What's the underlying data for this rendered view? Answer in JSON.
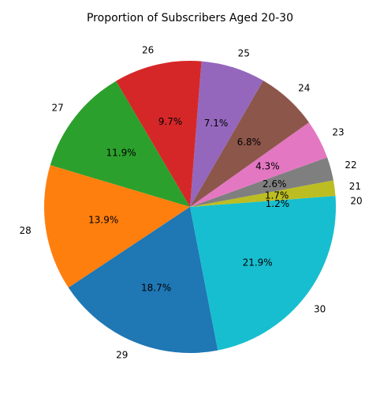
{
  "chart_data": {
    "type": "pie",
    "title": "Proportion of Subscribers Aged 20-30",
    "start_angle_deg": 0,
    "direction": "counterclockwise",
    "categories": [
      "20",
      "21",
      "22",
      "23",
      "24",
      "25",
      "26",
      "27",
      "28",
      "29",
      "30"
    ],
    "values": [
      1.2,
      1.7,
      2.6,
      4.3,
      6.8,
      7.1,
      9.7,
      11.9,
      13.9,
      18.7,
      21.9
    ],
    "percent_labels": [
      "1.2%",
      "1.7%",
      "2.6%",
      "4.3%",
      "6.8%",
      "7.1%",
      "9.7%",
      "11.9%",
      "13.9%",
      "18.7%",
      "21.9%"
    ],
    "colors": [
      "#17becf",
      "#bcbd22",
      "#7f7f7f",
      "#e377c2",
      "#8c564b",
      "#9467bd",
      "#d62728",
      "#2ca02c",
      "#ff7f0e",
      "#1f77b4"
    ]
  }
}
